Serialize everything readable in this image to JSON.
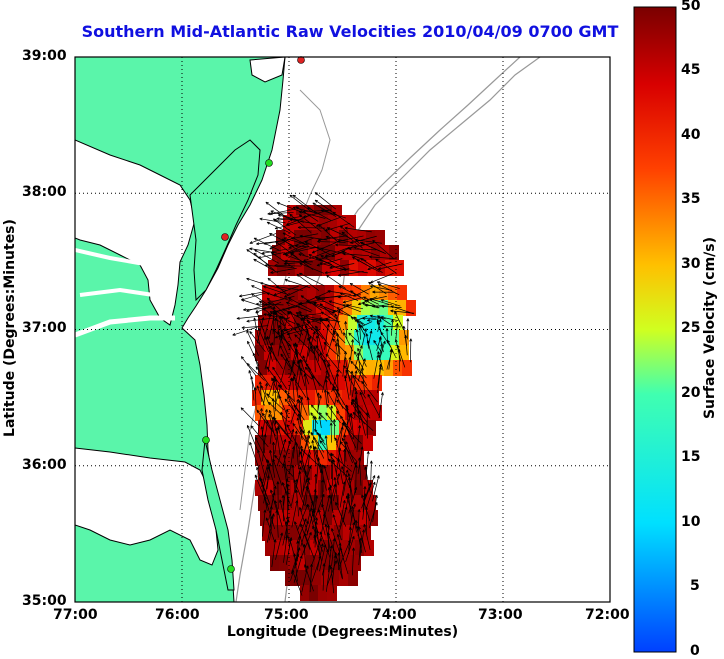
{
  "chart_data": {
    "type": "map",
    "title": "Southern Mid-Atlantic Raw Velocities 2010/04/09 0700 GMT",
    "xlabel": "Longitude (Degrees:Minutes)",
    "ylabel": "Latitude (Degrees:Minutes)",
    "xlim": [
      -77,
      -72
    ],
    "ylim": [
      35,
      39
    ],
    "x_ticks": [
      "77:00",
      "76:00",
      "75:00",
      "74:00",
      "73:00",
      "72:00"
    ],
    "y_ticks": [
      "39:00",
      "38:00",
      "37:00",
      "36:00",
      "35:00"
    ],
    "grid": true,
    "colorbar": {
      "label": "Surface Velocity (cm/s)",
      "range": [
        0,
        50
      ],
      "ticks": [
        "0",
        "5",
        "10",
        "15",
        "20",
        "25",
        "30",
        "35",
        "40",
        "45",
        "50"
      ],
      "colormap": "jet"
    }
  },
  "colors": {
    "title": "#1010e0",
    "land": "#5af5aa",
    "coastline": "#000000",
    "bathymetry": "#999999",
    "station_green": "#22dd22",
    "station_red": "#dd2222"
  }
}
